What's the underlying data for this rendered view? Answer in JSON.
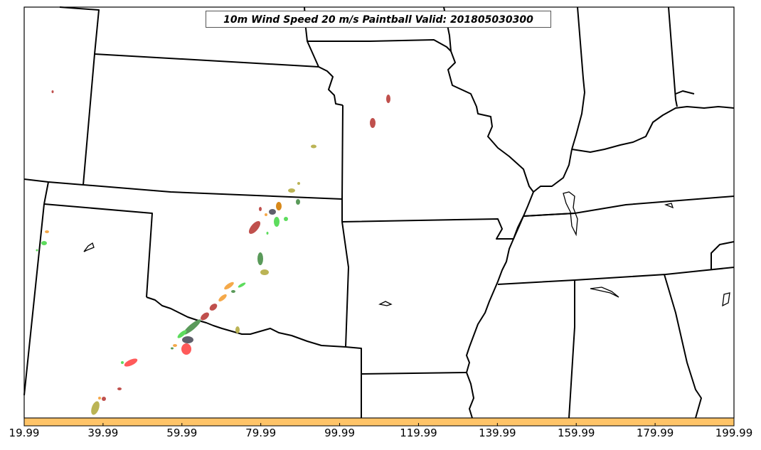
{
  "title": "10m Wind Speed 20 m/s Paintball Valid: 201805030300",
  "colorbar": {
    "color": "#ffc468",
    "tick_labels": [
      "19.99",
      "39.99",
      "59.99",
      "79.99",
      "99.99",
      "119.99",
      "139.99",
      "159.99",
      "179.99",
      "199.99"
    ]
  },
  "paint_colors": {
    "dark_red": "#c0504d",
    "red": "#ff5a5a",
    "green": "#5ddc5d",
    "dark_green": "#5a9a5a",
    "olive": "#bbb455",
    "orange": "#f5a94a",
    "dark_orange": "#d8891a",
    "gray": "#5f5f6b"
  }
}
